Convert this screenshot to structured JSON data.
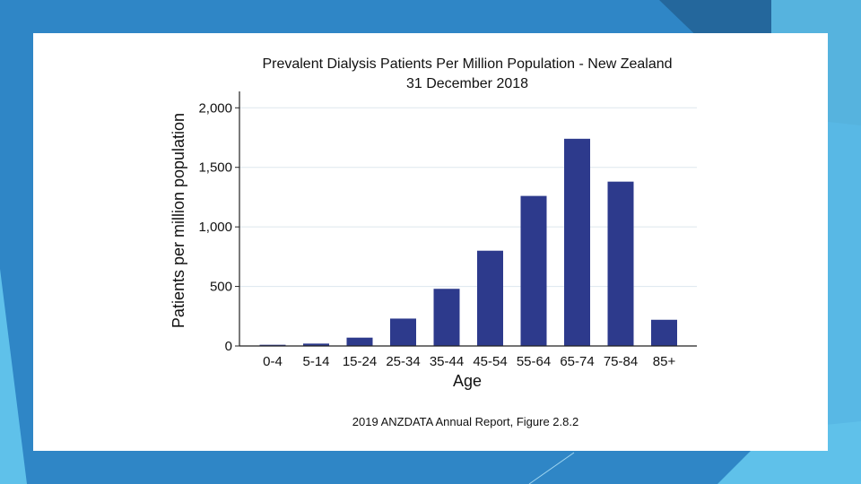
{
  "slide": {
    "colors": {
      "background": "#2f86c6",
      "accent_light": "#5fc1ea",
      "accent_dark": "#24679c",
      "panel": "#ffffff"
    }
  },
  "chart_data": {
    "type": "bar",
    "title": "Prevalent Dialysis Patients Per Million Population - New Zealand",
    "subtitle": "31 December 2018",
    "xlabel": "Age",
    "ylabel": "Patients per million population",
    "categories": [
      "0-4",
      "5-14",
      "15-24",
      "25-34",
      "35-44",
      "45-54",
      "55-64",
      "65-74",
      "75-84",
      "85+"
    ],
    "values": [
      10,
      20,
      70,
      230,
      480,
      800,
      1260,
      1740,
      1380,
      220
    ],
    "ylim": [
      0,
      2100
    ],
    "yticks": [
      0,
      500,
      1000,
      1500,
      2000
    ],
    "ytick_labels": [
      "0",
      "500",
      "1,000",
      "1,500",
      "2,000"
    ],
    "grid": true,
    "bar_color": "#2d3a8c",
    "source": "2019 ANZDATA Annual Report, Figure 2.8.2"
  }
}
